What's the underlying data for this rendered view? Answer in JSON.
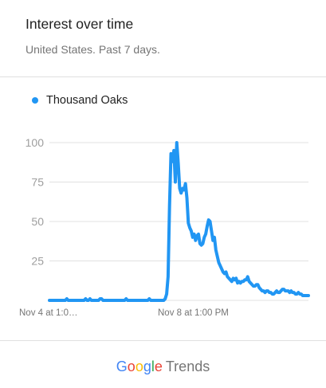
{
  "header": {
    "title": "Interest over time",
    "subtitle": "United States. Past 7 days."
  },
  "colors": {
    "series": "#2196f3",
    "grid": "#e0e0e0",
    "tick": "#9e9e9e",
    "google_blue": "#4285f4",
    "google_red": "#ea4335",
    "google_yellow": "#fbbc05",
    "google_green": "#34a853"
  },
  "footer": {
    "brand_google": "Google",
    "brand_trends": "Trends"
  },
  "chart_data": {
    "type": "line",
    "ylim": [
      0,
      100
    ],
    "yticks": [
      25,
      50,
      75,
      100
    ],
    "x_tick_labels": [
      "Nov 4 at 1:0…",
      "Nov 8 at 1:00 PM"
    ],
    "grid": true,
    "legend_position": "top-left",
    "series": [
      {
        "name": "Thousand Oaks",
        "values": [
          0,
          0,
          0,
          0,
          0,
          0,
          0,
          0,
          0,
          0,
          0,
          0,
          1,
          0,
          0,
          0,
          0,
          0,
          0,
          0,
          0,
          0,
          0,
          0,
          0,
          1,
          0,
          0,
          1,
          0,
          0,
          0,
          0,
          0,
          0,
          1,
          1,
          0,
          0,
          0,
          0,
          0,
          0,
          0,
          0,
          0,
          0,
          0,
          0,
          0,
          0,
          0,
          0,
          1,
          0,
          0,
          0,
          0,
          0,
          0,
          0,
          0,
          0,
          0,
          0,
          0,
          0,
          0,
          0,
          1,
          0,
          0,
          0,
          0,
          0,
          0,
          0,
          0,
          0,
          0,
          1,
          4,
          15,
          60,
          93,
          88,
          95,
          75,
          100,
          87,
          71,
          68,
          71,
          70,
          74,
          65,
          49,
          46,
          44,
          40,
          42,
          38,
          41,
          42,
          36,
          35,
          36,
          40,
          42,
          47,
          51,
          50,
          44,
          38,
          40,
          32,
          28,
          24,
          22,
          20,
          18,
          17,
          18,
          15,
          14,
          13,
          12,
          14,
          13,
          14,
          11,
          12,
          11,
          12,
          12,
          13,
          13,
          15,
          12,
          11,
          10,
          9,
          9,
          10,
          10,
          8,
          7,
          6,
          6,
          5,
          6,
          6,
          5,
          5,
          4,
          4,
          5,
          6,
          5,
          5,
          6,
          7,
          7,
          6,
          6,
          6,
          5,
          6,
          5,
          5,
          4,
          4,
          5,
          4,
          4,
          3,
          3,
          3,
          3,
          3
        ]
      }
    ]
  }
}
